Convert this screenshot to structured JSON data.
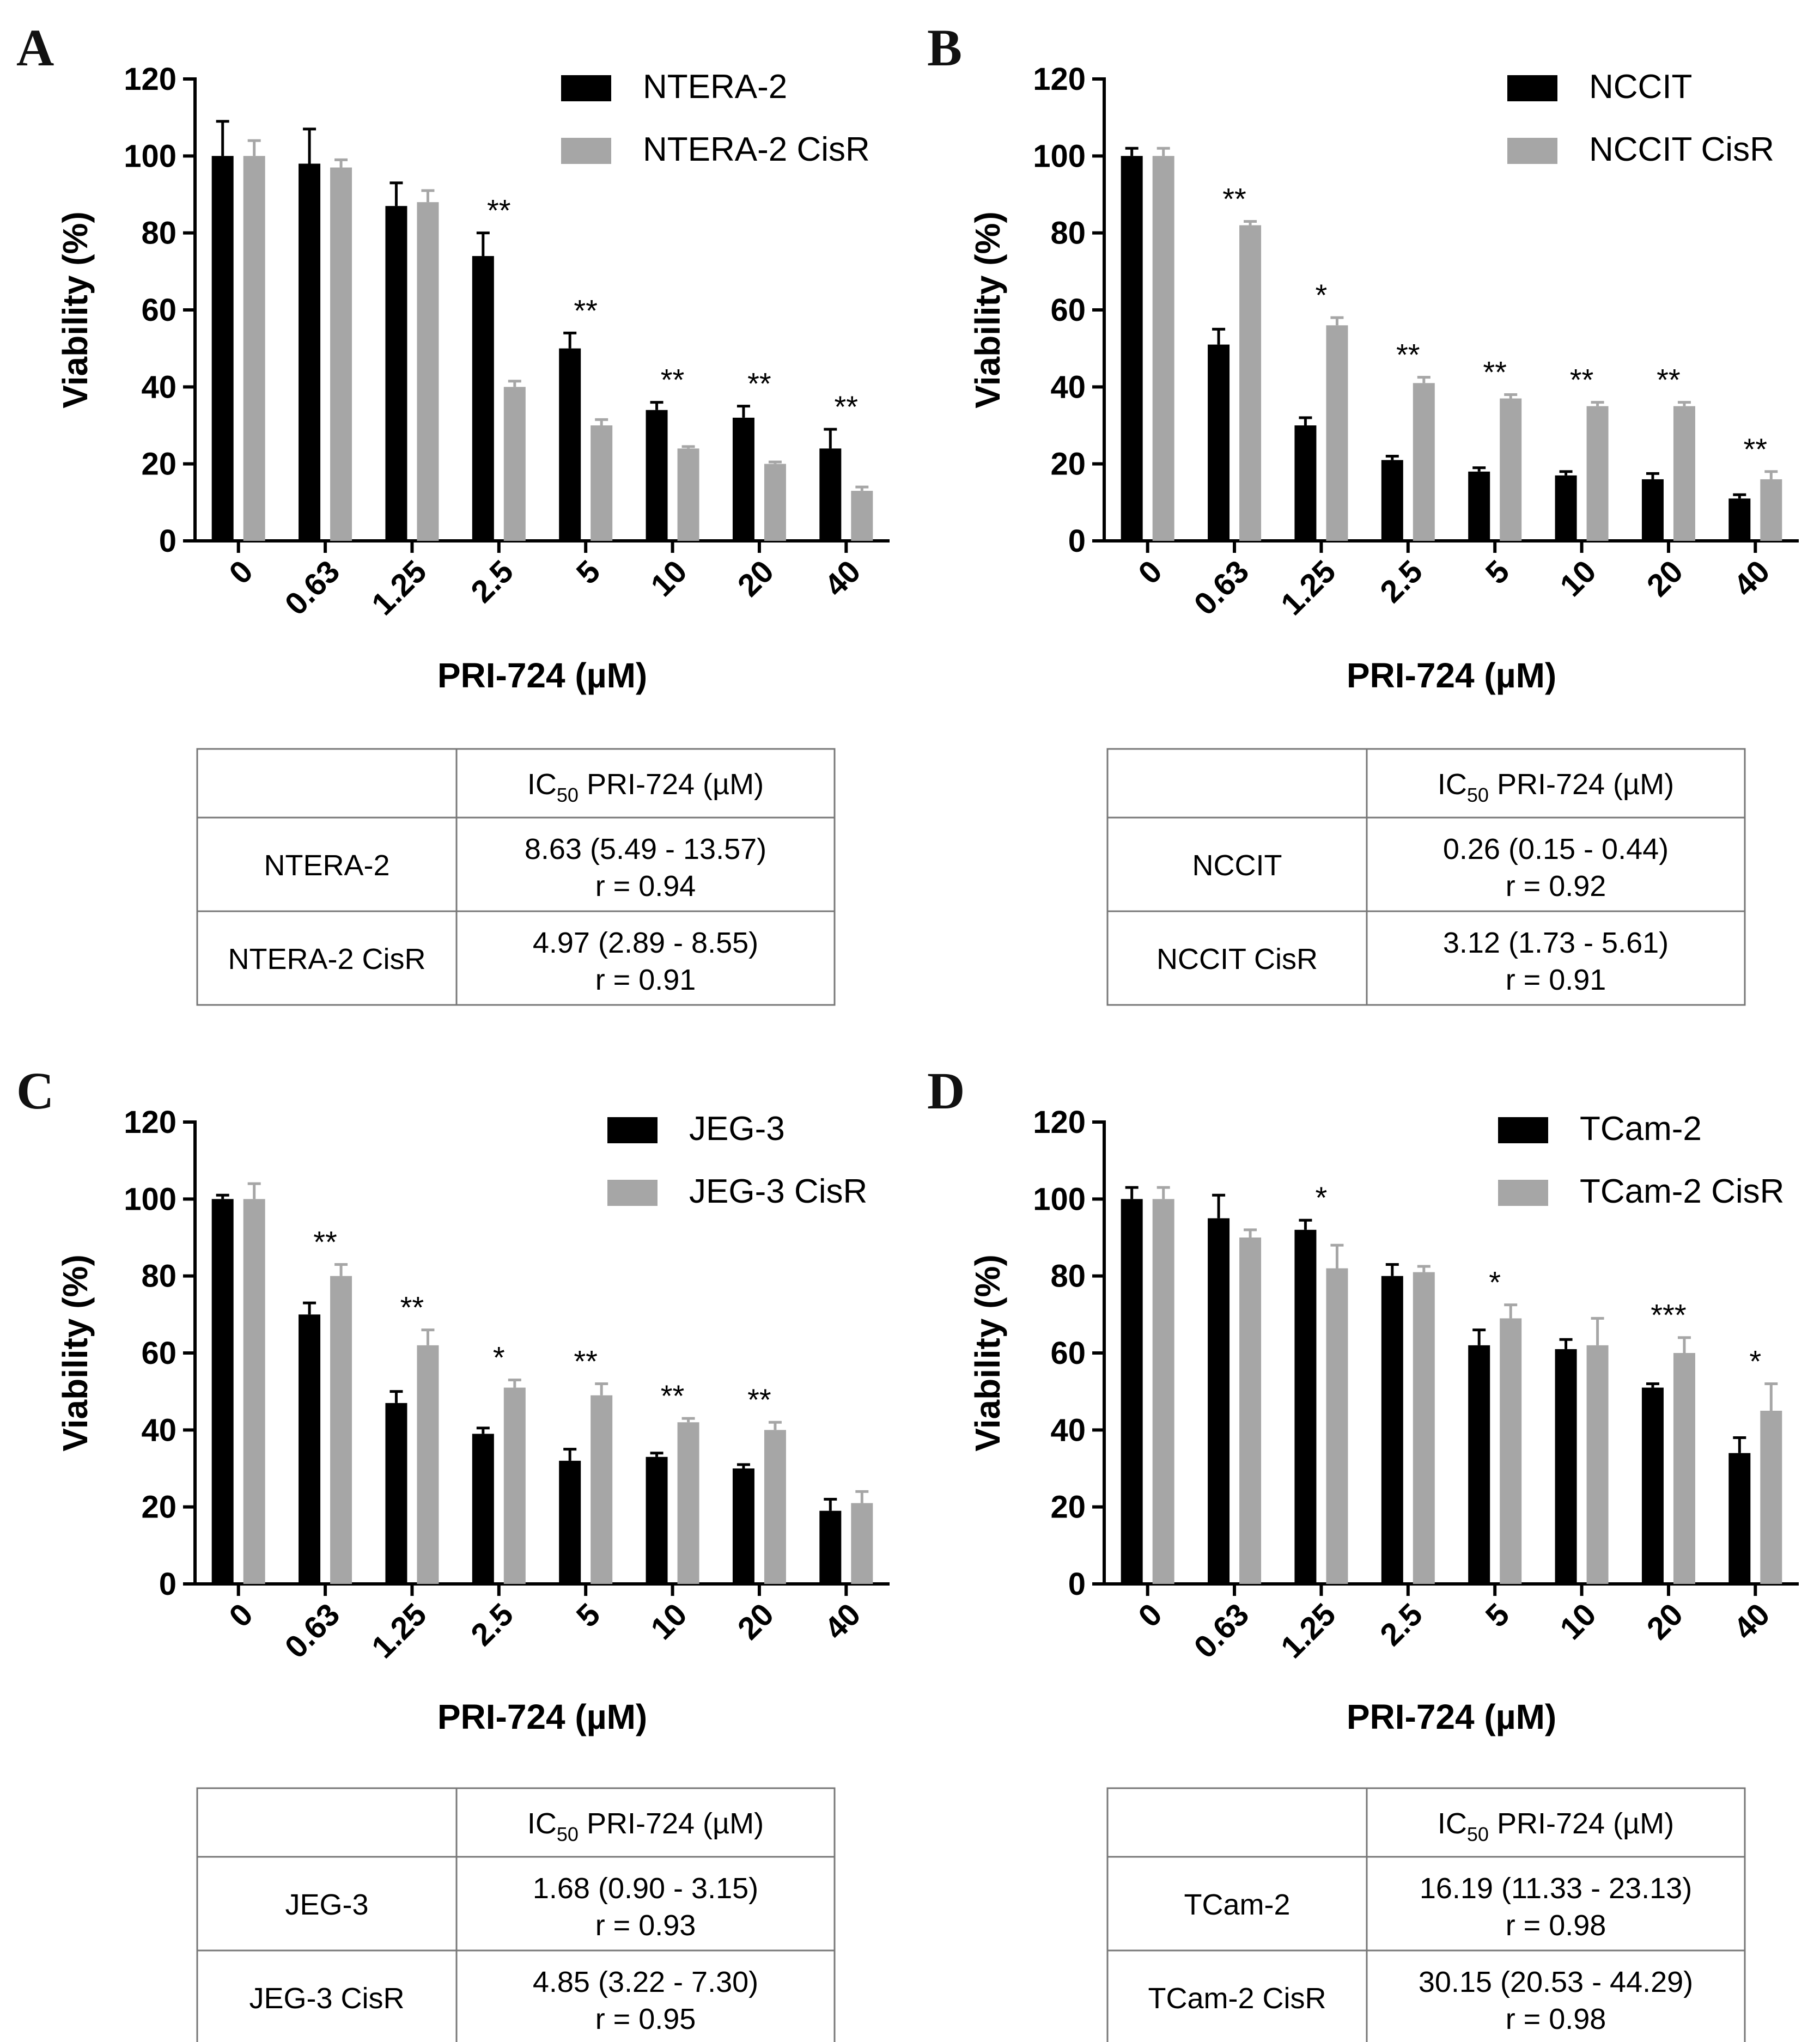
{
  "colors": {
    "black_series": "#000000",
    "grey_series": "#a6a6a6",
    "table_border": "#777777"
  },
  "shared": {
    "y_axis_title": "Viability (%)",
    "x_axis_title": "PRI-724 (µM)",
    "table_header": "IC50 PRI-724 (µM)"
  },
  "chart_data": [
    {
      "panel": "A",
      "type": "bar",
      "title": "",
      "xlabel": "PRI-724 (µM)",
      "ylabel": "Viability (%)",
      "ylim": [
        0,
        120
      ],
      "yticks": [
        0,
        20,
        40,
        60,
        80,
        100,
        120
      ],
      "categories": [
        "0",
        "0.63",
        "1.25",
        "2.5",
        "5",
        "10",
        "20",
        "40"
      ],
      "series": [
        {
          "name": "NTERA-2",
          "values": [
            100,
            98,
            87,
            74,
            50,
            34,
            32,
            24
          ],
          "errors": [
            9,
            9,
            6,
            6,
            4,
            2,
            3,
            5
          ]
        },
        {
          "name": "NTERA-2 CisR",
          "values": [
            100,
            97,
            88,
            40,
            30,
            24,
            20,
            13
          ],
          "errors": [
            4,
            2,
            3,
            1.5,
            1.5,
            0.5,
            0.5,
            1
          ]
        }
      ],
      "significance": [
        "",
        "",
        "",
        "**",
        "**",
        "**",
        "**",
        "**"
      ],
      "legend": "top-right",
      "ic50_table": {
        "header": "IC50 PRI-724 (µM)",
        "rows": [
          {
            "cell": "NTERA-2",
            "value": "8.63 (5.49 - 13.57)",
            "r": "r = 0.94"
          },
          {
            "cell": "NTERA-2 CisR",
            "value": "4.97 (2.89 - 8.55)",
            "r": "r = 0.91"
          }
        ]
      }
    },
    {
      "panel": "B",
      "type": "bar",
      "title": "",
      "xlabel": "PRI-724 (µM)",
      "ylabel": "Viability (%)",
      "ylim": [
        0,
        120
      ],
      "yticks": [
        0,
        20,
        40,
        60,
        80,
        100,
        120
      ],
      "categories": [
        "0",
        "0.63",
        "1.25",
        "2.5",
        "5",
        "10",
        "20",
        "40"
      ],
      "series": [
        {
          "name": "NCCIT",
          "values": [
            100,
            51,
            30,
            21,
            18,
            17,
            16,
            11
          ],
          "errors": [
            2,
            4,
            2,
            1,
            1,
            1,
            1.5,
            1
          ]
        },
        {
          "name": "NCCIT CisR",
          "values": [
            100,
            82,
            56,
            41,
            37,
            35,
            35,
            16
          ],
          "errors": [
            2,
            1,
            2,
            1.5,
            1,
            1,
            1,
            2
          ]
        }
      ],
      "significance": [
        "",
        "**",
        "*",
        "**",
        "**",
        "**",
        "**",
        "**"
      ],
      "legend": "top-right",
      "ic50_table": {
        "header": "IC50 PRI-724 (µM)",
        "rows": [
          {
            "cell": "NCCIT",
            "value": "0.26 (0.15 - 0.44)",
            "r": "r = 0.92"
          },
          {
            "cell": "NCCIT CisR",
            "value": "3.12 (1.73 - 5.61)",
            "r": "r = 0.91"
          }
        ]
      }
    },
    {
      "panel": "C",
      "type": "bar",
      "title": "",
      "xlabel": "PRI-724 (µM)",
      "ylabel": "Viability (%)",
      "ylim": [
        0,
        120
      ],
      "yticks": [
        0,
        20,
        40,
        60,
        80,
        100,
        120
      ],
      "categories": [
        "0",
        "0.63",
        "1.25",
        "2.5",
        "5",
        "10",
        "20",
        "40"
      ],
      "series": [
        {
          "name": "JEG-3",
          "values": [
            100,
            70,
            47,
            39,
            32,
            33,
            30,
            19
          ],
          "errors": [
            1,
            3,
            3,
            1.5,
            3,
            1,
            1,
            3
          ]
        },
        {
          "name": "JEG-3 CisR",
          "values": [
            100,
            80,
            62,
            51,
            49,
            42,
            40,
            21
          ],
          "errors": [
            4,
            3,
            4,
            2,
            3,
            1,
            2,
            3
          ]
        }
      ],
      "significance": [
        "",
        "**",
        "**",
        "*",
        "**",
        "**",
        "**",
        ""
      ],
      "legend": "top-right",
      "ic50_table": {
        "header": "IC50 PRI-724 (µM)",
        "rows": [
          {
            "cell": "JEG-3",
            "value": "1.68 (0.90 - 3.15)",
            "r": "r = 0.93"
          },
          {
            "cell": "JEG-3 CisR",
            "value": "4.85 (3.22 - 7.30)",
            "r": "r = 0.95"
          }
        ]
      }
    },
    {
      "panel": "D",
      "type": "bar",
      "title": "",
      "xlabel": "PRI-724 (µM)",
      "ylabel": "Viability (%)",
      "ylim": [
        0,
        120
      ],
      "yticks": [
        0,
        20,
        40,
        60,
        80,
        100,
        120
      ],
      "categories": [
        "0",
        "0.63",
        "1.25",
        "2.5",
        "5",
        "10",
        "20",
        "40"
      ],
      "series": [
        {
          "name": "TCam-2",
          "values": [
            100,
            95,
            92,
            80,
            62,
            61,
            51,
            34
          ],
          "errors": [
            3,
            6,
            2.5,
            3,
            4,
            2.5,
            1,
            4
          ]
        },
        {
          "name": "TCam-2 CisR",
          "values": [
            100,
            90,
            82,
            81,
            69,
            62,
            60,
            45
          ],
          "errors": [
            3,
            2,
            6,
            1.5,
            3.5,
            7,
            4,
            7
          ]
        }
      ],
      "significance": [
        "",
        "",
        "*",
        "",
        "*",
        "",
        "***",
        "*"
      ],
      "legend": "top-right",
      "ic50_table": {
        "header": "IC50 PRI-724 (µM)",
        "rows": [
          {
            "cell": "TCam-2",
            "value": "16.19 (11.33 - 23.13)",
            "r": "r = 0.98"
          },
          {
            "cell": "TCam-2 CisR",
            "value": "30.15 (20.53 - 44.29)",
            "r": "r = 0.98"
          }
        ]
      }
    }
  ]
}
